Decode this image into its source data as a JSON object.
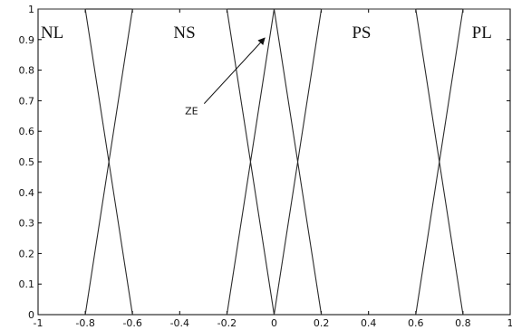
{
  "chart_data": {
    "type": "line",
    "xlim": [
      -1,
      1
    ],
    "ylim": [
      0,
      1
    ],
    "xticks": [
      -1,
      -0.8,
      -0.6,
      -0.4,
      -0.2,
      0,
      0.2,
      0.4,
      0.6,
      0.8,
      1
    ],
    "xtick_labels": [
      "-1",
      "-0.8",
      "-0.6",
      "-0.4",
      "-0.2",
      "0",
      "0.2",
      "0.4",
      "0.6",
      "0.8",
      "1"
    ],
    "yticks": [
      0,
      0.1,
      0.2,
      0.3,
      0.4,
      0.5,
      0.6,
      0.7,
      0.8,
      0.9,
      1
    ],
    "ytick_labels": [
      "0",
      "0.1",
      "0.2",
      "0.3",
      "0.4",
      "0.5",
      "0.6",
      "0.7",
      "0.8",
      "0.9",
      "1"
    ],
    "grid": false,
    "series": [
      {
        "name": "NL",
        "x": [
          -1,
          -0.8,
          -0.6
        ],
        "y": [
          1,
          1,
          0
        ]
      },
      {
        "name": "NS",
        "x": [
          -0.8,
          -0.6,
          -0.2,
          0
        ],
        "y": [
          0,
          1,
          1,
          0
        ]
      },
      {
        "name": "ZE",
        "x": [
          -0.2,
          0,
          0.2
        ],
        "y": [
          0,
          1,
          0
        ]
      },
      {
        "name": "PS",
        "x": [
          0,
          0.2,
          0.6,
          0.8
        ],
        "y": [
          0,
          1,
          1,
          0
        ]
      },
      {
        "name": "PL",
        "x": [
          0.6,
          0.8,
          1
        ],
        "y": [
          0,
          1,
          1
        ]
      }
    ],
    "set_labels": [
      {
        "text": "NL",
        "x": -0.94,
        "y": 0.905
      },
      {
        "text": "NS",
        "x": -0.38,
        "y": 0.905
      },
      {
        "text": "PS",
        "x": 0.37,
        "y": 0.905
      },
      {
        "text": "PL",
        "x": 0.88,
        "y": 0.905
      }
    ],
    "annotation": {
      "text": "ZE",
      "text_x": -0.35,
      "text_y": 0.655,
      "arrow_to_x": -0.04,
      "arrow_to_y": 0.905
    }
  }
}
